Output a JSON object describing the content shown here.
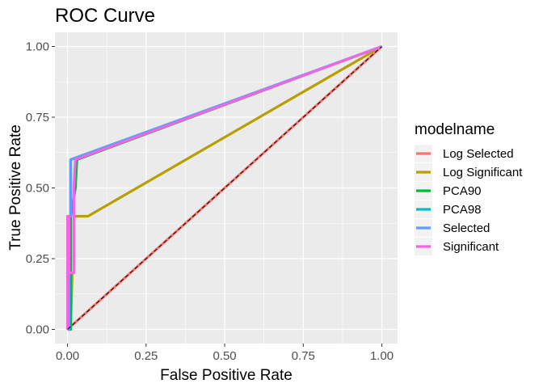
{
  "chart_data": {
    "type": "line",
    "title": "ROC Curve",
    "xlabel": "False Positive Rate",
    "ylabel": "True Positive Rate",
    "xlim": [
      -0.04,
      1.05
    ],
    "ylim": [
      -0.05,
      1.05
    ],
    "x_ticks": [
      0,
      0.25,
      0.5,
      0.75,
      1
    ],
    "x_tick_labels": [
      "0.00",
      "0.25",
      "0.50",
      "0.75",
      "1.00"
    ],
    "y_ticks": [
      0,
      0.25,
      0.5,
      0.75,
      1
    ],
    "y_tick_labels": [
      "0.00",
      "0.25",
      "0.50",
      "0.75",
      "1.00"
    ],
    "grid": true,
    "reference_line": {
      "x": [
        0,
        1
      ],
      "y": [
        0,
        1
      ],
      "style": "dashed",
      "color": "#000000"
    },
    "legend": {
      "title": "modelname",
      "position": "right"
    },
    "series": [
      {
        "name": "Log Selected",
        "color": "#F8766D",
        "x": [
          0,
          1
        ],
        "y": [
          0,
          1
        ]
      },
      {
        "name": "Log Significant",
        "color": "#B79F00",
        "x": [
          0,
          0.01,
          0.015,
          0.02,
          0.02,
          0.065,
          1
        ],
        "y": [
          0,
          0,
          0.2,
          0.2,
          0.4,
          0.4,
          1
        ]
      },
      {
        "name": "PCA90",
        "color": "#00BA38",
        "x": [
          0,
          0.01,
          0.01,
          0.025,
          0.03,
          1
        ],
        "y": [
          0,
          0,
          0.4,
          0.5,
          0.6,
          1
        ]
      },
      {
        "name": "PCA98",
        "color": "#00BFC4",
        "x": [
          0,
          0.005,
          0.005,
          0.01,
          0.01,
          1
        ],
        "y": [
          0,
          0,
          0.4,
          0.4,
          0.6,
          1
        ]
      },
      {
        "name": "Selected",
        "color": "#619CFF",
        "x": [
          0,
          0.005,
          0.005,
          0.01,
          0.01,
          1
        ],
        "y": [
          0,
          0,
          0.4,
          0.4,
          0.6,
          1
        ]
      },
      {
        "name": "Significant",
        "color": "#F564E3",
        "x": [
          0,
          0,
          0.005,
          0.005,
          0.02,
          0.02,
          0.025,
          1
        ],
        "y": [
          0,
          0.4,
          0.4,
          0.2,
          0.2,
          0.5,
          0.6,
          1
        ]
      }
    ]
  }
}
